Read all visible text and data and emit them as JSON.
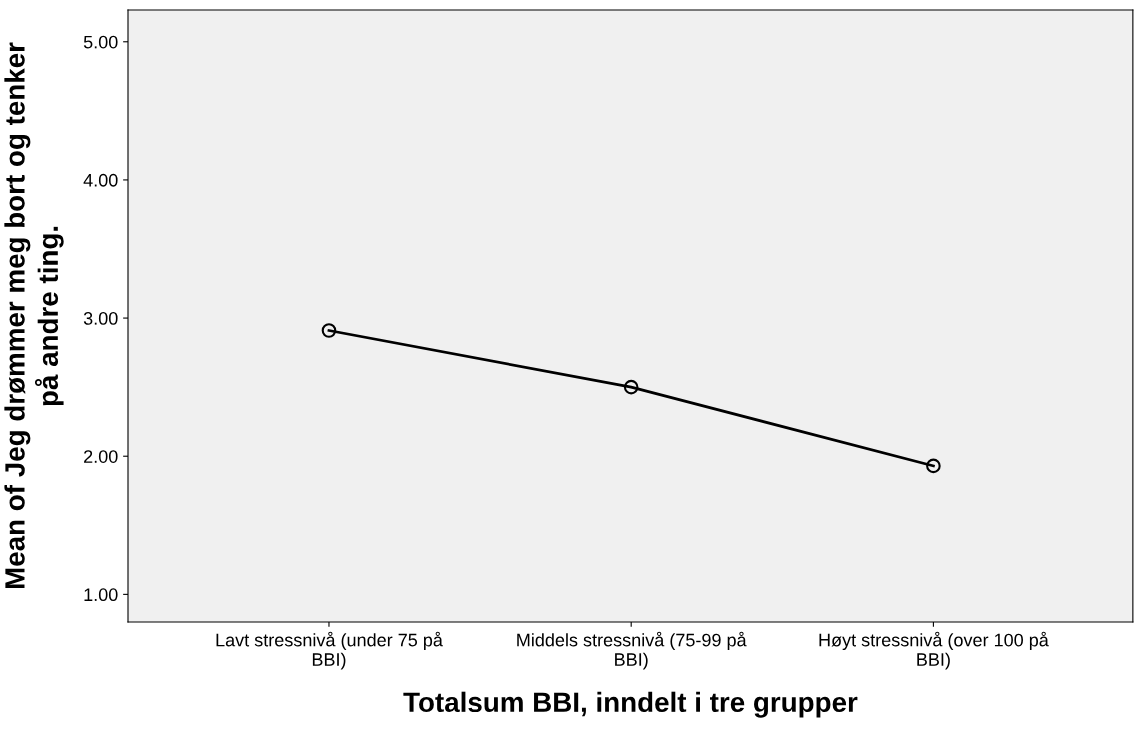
{
  "chart_data": {
    "type": "line",
    "categories": [
      "Lavt stressnivå (under 75 på\nBBI)",
      "Middels stressnivå (75-99 på\nBBI)",
      "Høyt stressnivå (over 100 på\nBBI)"
    ],
    "values": [
      2.91,
      2.5,
      1.93
    ],
    "color": "#000000",
    "xlabel": "Totalsum BBI, inndelt i tre grupper",
    "ylabel": "Mean of Jeg drømmer meg bort og tenker\npå andre ting.",
    "ylim": [
      0.8,
      5.23
    ],
    "yticks": [
      {
        "value": 1,
        "label": "1.00"
      },
      {
        "value": 2,
        "label": "2.00"
      },
      {
        "value": 3,
        "label": "3.00"
      },
      {
        "value": 4,
        "label": "4.00"
      },
      {
        "value": 5,
        "label": "5.00"
      }
    ],
    "marker": "circle",
    "line_style": "solid",
    "grid": false,
    "legend": false
  }
}
